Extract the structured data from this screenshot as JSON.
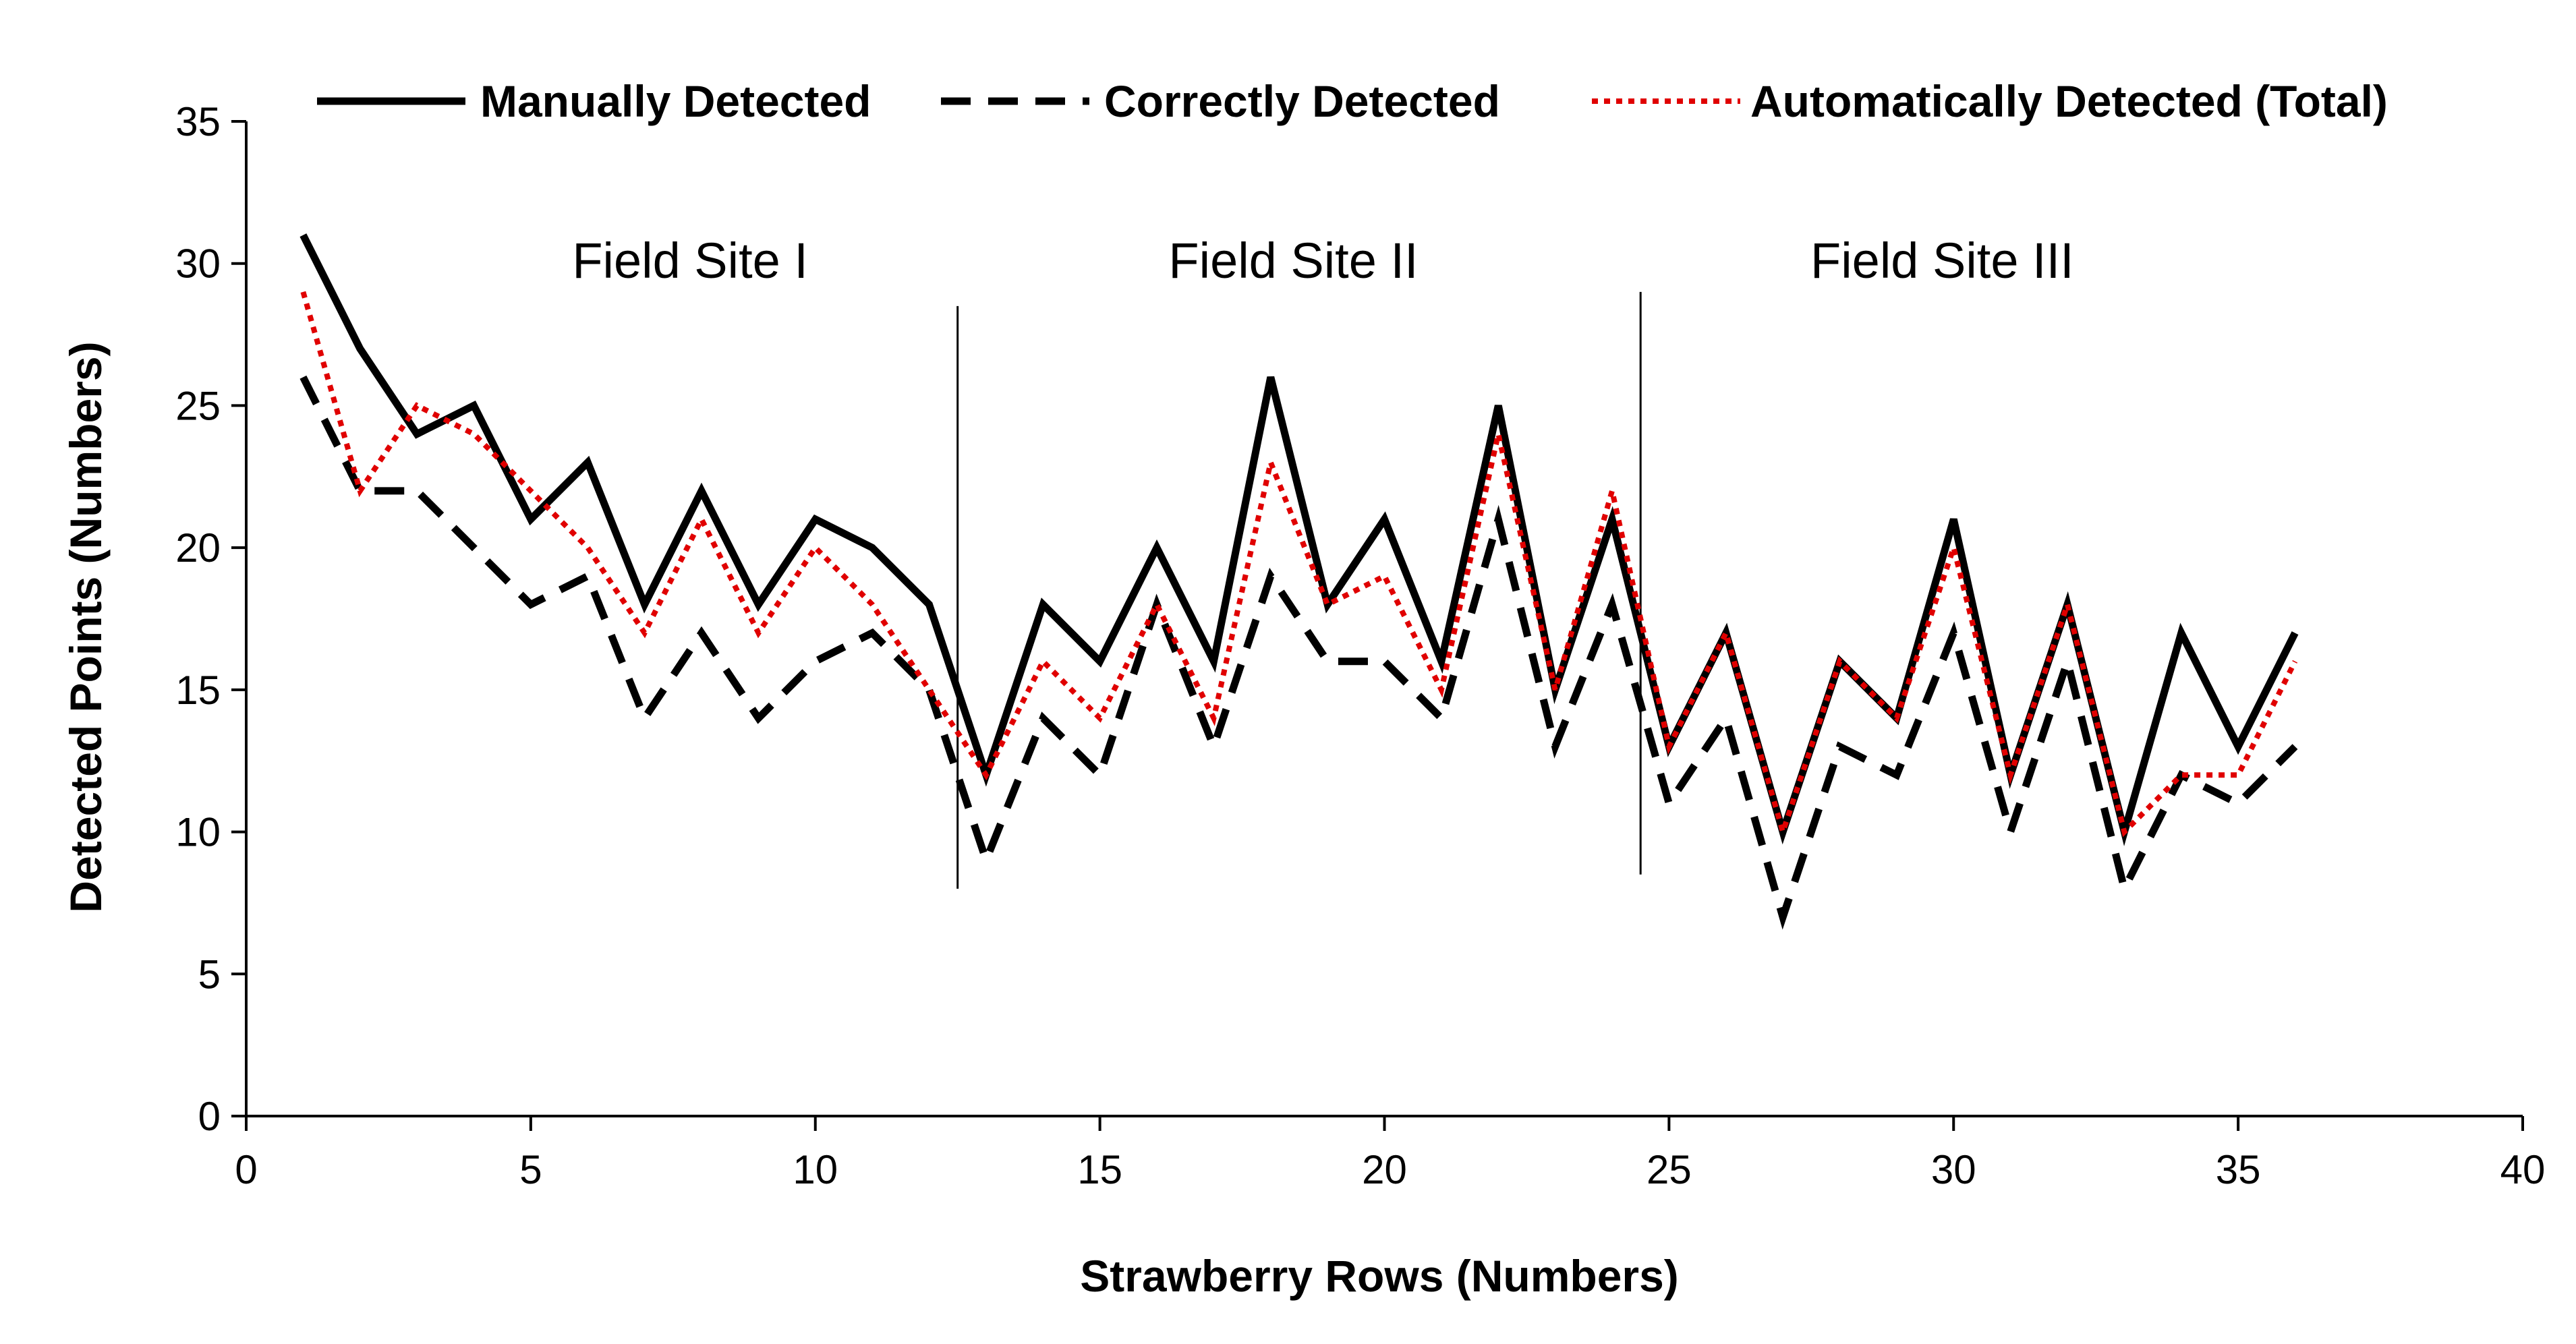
{
  "chart_data": {
    "type": "line",
    "title": "",
    "xlabel": "Strawberry Rows (Numbers)",
    "ylabel": "Detected Points (Numbers)",
    "xlim": [
      0,
      40
    ],
    "ylim": [
      0,
      35
    ],
    "x_ticks": [
      0,
      5,
      10,
      15,
      20,
      25,
      30,
      35,
      40
    ],
    "y_ticks": [
      0,
      5,
      10,
      15,
      20,
      25,
      30,
      35
    ],
    "grid": false,
    "legend_position": "top",
    "x": [
      1,
      2,
      3,
      4,
      5,
      6,
      7,
      8,
      9,
      10,
      11,
      12,
      13,
      14,
      15,
      16,
      17,
      18,
      19,
      20,
      21,
      22,
      23,
      24,
      25,
      26,
      27,
      28,
      29,
      30,
      31,
      32,
      33,
      34,
      35,
      36
    ],
    "series": [
      {
        "name": "Manually Detected",
        "color": "#000000",
        "style": "solid",
        "values": [
          31,
          27,
          24,
          25,
          21,
          23,
          18,
          22,
          18,
          21,
          20,
          18,
          12,
          18,
          16,
          20,
          16,
          26,
          18,
          21,
          16,
          25,
          15,
          21,
          13,
          17,
          10,
          16,
          14,
          21,
          12,
          18,
          10,
          17,
          13,
          17
        ]
      },
      {
        "name": "Correctly Detected",
        "color": "#000000",
        "style": "dashed",
        "values": [
          26,
          22,
          22,
          20,
          18,
          19,
          14,
          17,
          14,
          16,
          17,
          15,
          9,
          14,
          12,
          18,
          13,
          19,
          16,
          16,
          14,
          21,
          13,
          18,
          11,
          14,
          7,
          13,
          12,
          17,
          10,
          16,
          8,
          12,
          11,
          13
        ]
      },
      {
        "name": "Automatically Detected (Total)",
        "color": "#e00000",
        "style": "dotted",
        "values": [
          29,
          22,
          25,
          24,
          22,
          20,
          17,
          21,
          17,
          20,
          18,
          15,
          12,
          16,
          14,
          18,
          14,
          23,
          18,
          19,
          15,
          24,
          15,
          22,
          13,
          17,
          10,
          16,
          14,
          20,
          12,
          18,
          10,
          12,
          12,
          16
        ]
      }
    ],
    "separators": [
      12.5,
      24.5
    ],
    "annotations": [
      {
        "text": "Field Site I",
        "x": 7.8,
        "y": 29.5
      },
      {
        "text": "Field Site II",
        "x": 18.4,
        "y": 29.5
      },
      {
        "text": "Field Site III",
        "x": 29.8,
        "y": 29.5
      }
    ]
  }
}
